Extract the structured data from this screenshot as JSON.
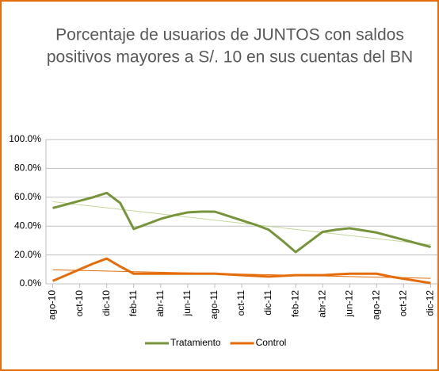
{
  "chart_data": {
    "type": "line",
    "title": [
      "Porcentaje de usuarios de JUNTOS con saldos",
      "positivos mayores a S/. 10 en sus cuentas del BN"
    ],
    "categories": [
      "ago-10",
      null,
      "oct-10",
      null,
      "dic-10",
      null,
      "feb-11",
      null,
      "abr-11",
      null,
      "jun-11",
      null,
      "ago-11",
      null,
      "oct-11",
      null,
      "dic-11",
      null,
      "feb-12",
      null,
      "abr-12",
      null,
      "jun-12",
      null,
      "ago-12",
      null,
      "oct-12",
      null,
      "dic-12"
    ],
    "series": [
      {
        "name": "Tratamiento",
        "color": "#77933c",
        "trend_color": "#c3d69b",
        "values": [
          52.5,
          55,
          57.5,
          60,
          63,
          56,
          38,
          41.5,
          45,
          47.5,
          49.5,
          50,
          50,
          47,
          44,
          41,
          37.5,
          30,
          22,
          29,
          36,
          37.5,
          38.5,
          37,
          35.5,
          33,
          30.5,
          28,
          25.5
        ]
      },
      {
        "name": "Control",
        "color": "#e46c0a",
        "trend_color": "#e46c0a",
        "values": [
          2,
          6,
          10,
          14,
          17.5,
          12,
          7,
          7,
          7,
          7,
          7,
          7,
          7,
          6.5,
          6,
          5.5,
          5,
          5.5,
          6,
          6,
          6,
          6.5,
          7,
          7,
          7,
          5,
          3.5,
          2,
          0.5
        ]
      }
    ],
    "ylim": [
      0,
      100
    ],
    "yticks": [
      {
        "value": 0,
        "label": "0.0%"
      },
      {
        "value": 20,
        "label": "20.0%"
      },
      {
        "value": 40,
        "label": "40.0%"
      },
      {
        "value": 60,
        "label": "60.0%"
      },
      {
        "value": 80,
        "label": "80.0%"
      },
      {
        "value": 100,
        "label": "100.0%"
      }
    ],
    "grid": true,
    "legend": "bottom",
    "trendline": true
  }
}
